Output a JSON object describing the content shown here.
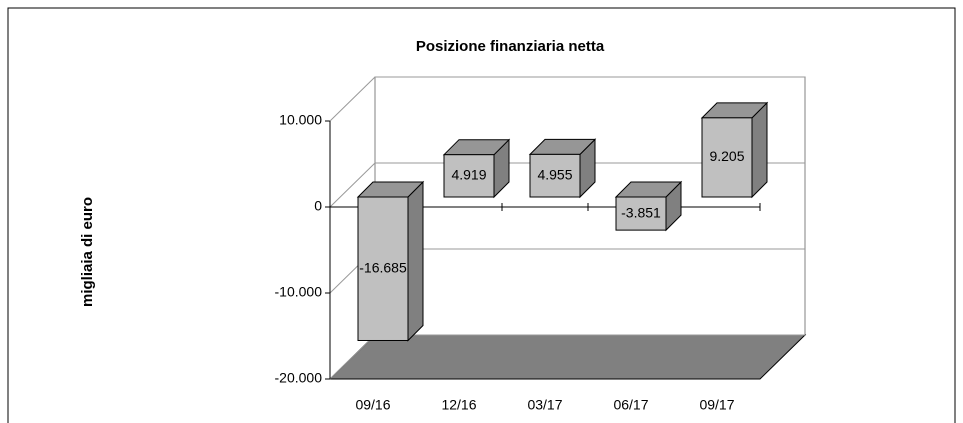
{
  "chart_data": {
    "type": "bar",
    "title": "Posizione finanziaria netta",
    "y_label": "migliaia di euro",
    "categories": [
      "09/16",
      "12/16",
      "03/17",
      "06/17",
      "09/17"
    ],
    "values": [
      -16685,
      4919,
      4955,
      -3851,
      9205
    ],
    "value_labels": [
      "-16.685",
      "4.919",
      "4.955",
      "-3.851",
      "9.205"
    ],
    "color": "#c0c0c0",
    "ylim": [
      -20000,
      10000
    ],
    "yticks": [
      {
        "value": -20000,
        "label": "-20.000"
      },
      {
        "value": -10000,
        "label": "-10.000"
      },
      0,
      {
        "value": 10000,
        "label": "10.000"
      }
    ],
    "grid": true
  }
}
